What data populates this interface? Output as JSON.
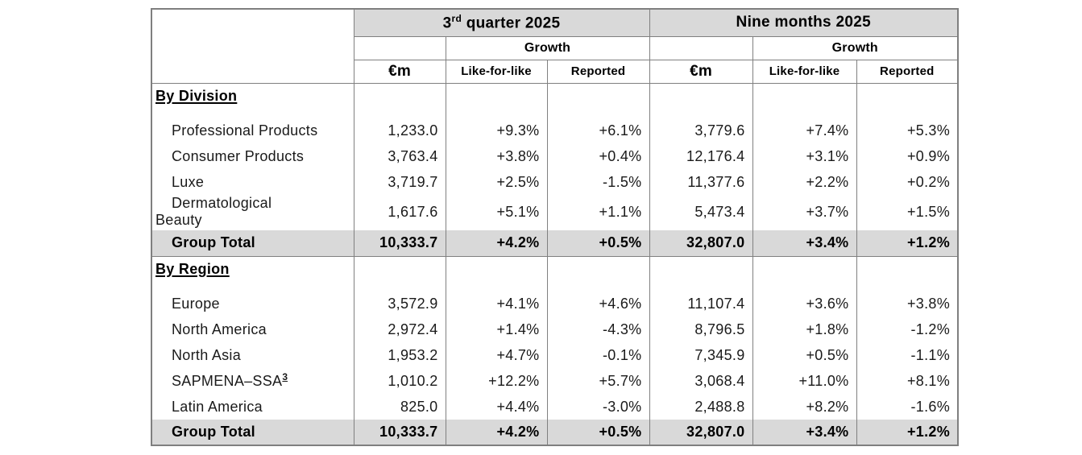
{
  "colors": {
    "header_band_bg": "#d9d9d9",
    "total_row_bg": "#d9d9d9",
    "grid_border": "#808080",
    "outer_border": "#7f7f7f",
    "text": "#1a1a1a"
  },
  "table": {
    "header": {
      "q3_num": "3",
      "q3_sup": "rd",
      "q3_rest": " quarter 2025",
      "nine_months": "Nine months 2025",
      "growth": "Growth",
      "eur_m": "€m",
      "like_for_like": "Like-for-like",
      "reported": "Reported"
    },
    "columns_order": [
      "q3_m",
      "q3_lfl",
      "q3_rep",
      "nm_m",
      "nm_lfl",
      "nm_rep"
    ],
    "sections": [
      {
        "title": "By Division",
        "rows": [
          {
            "label": "Professional Products",
            "q3_m": "1,233.0",
            "q3_lfl": "+9.3%",
            "q3_rep": "+6.1%",
            "nm_m": "3,779.6",
            "nm_lfl": "+7.4%",
            "nm_rep": "+5.3%"
          },
          {
            "label": "Consumer Products",
            "q3_m": "3,763.4",
            "q3_lfl": "+3.8%",
            "q3_rep": "+0.4%",
            "nm_m": "12,176.4",
            "nm_lfl": "+3.1%",
            "nm_rep": "+0.9%"
          },
          {
            "label": "Luxe",
            "q3_m": "3,719.7",
            "q3_lfl": "+2.5%",
            "q3_rep": "-1.5%",
            "nm_m": "11,377.6",
            "nm_lfl": "+2.2%",
            "nm_rep": "+0.2%"
          },
          {
            "label": "Dermatological\nBeauty",
            "q3_m": "1,617.6",
            "q3_lfl": "+5.1%",
            "q3_rep": "+1.1%",
            "nm_m": "5,473.4",
            "nm_lfl": "+3.7%",
            "nm_rep": "+1.5%"
          }
        ],
        "total": {
          "label": "Group Total",
          "q3_m": "10,333.7",
          "q3_lfl": "+4.2%",
          "q3_rep": "+0.5%",
          "nm_m": "32,807.0",
          "nm_lfl": "+3.4%",
          "nm_rep": "+1.2%"
        }
      },
      {
        "title": "By Region",
        "rows": [
          {
            "label": "Europe",
            "q3_m": "3,572.9",
            "q3_lfl": "+4.1%",
            "q3_rep": "+4.6%",
            "nm_m": "11,107.4",
            "nm_lfl": "+3.6%",
            "nm_rep": "+3.8%"
          },
          {
            "label": "North America",
            "q3_m": "2,972.4",
            "q3_lfl": "+1.4%",
            "q3_rep": "-4.3%",
            "nm_m": "8,796.5",
            "nm_lfl": "+1.8%",
            "nm_rep": "-1.2%"
          },
          {
            "label": "North Asia",
            "q3_m": "1,953.2",
            "q3_lfl": "+4.7%",
            "q3_rep": "-0.1%",
            "nm_m": "7,345.9",
            "nm_lfl": "+0.5%",
            "nm_rep": "-1.1%"
          },
          {
            "label": "SAPMENA–SSA",
            "label_sup": "3",
            "q3_m": "1,010.2",
            "q3_lfl": "+12.2%",
            "q3_rep": "+5.7%",
            "nm_m": "3,068.4",
            "nm_lfl": "+11.0%",
            "nm_rep": "+8.1%"
          },
          {
            "label": "Latin America",
            "q3_m": "825.0",
            "q3_lfl": "+4.4%",
            "q3_rep": "-3.0%",
            "nm_m": "2,488.8",
            "nm_lfl": "+8.2%",
            "nm_rep": "-1.6%"
          }
        ],
        "total": {
          "label": "Group Total",
          "q3_m": "10,333.7",
          "q3_lfl": "+4.2%",
          "q3_rep": "+0.5%",
          "nm_m": "32,807.0",
          "nm_lfl": "+3.4%",
          "nm_rep": "+1.2%"
        }
      }
    ]
  }
}
